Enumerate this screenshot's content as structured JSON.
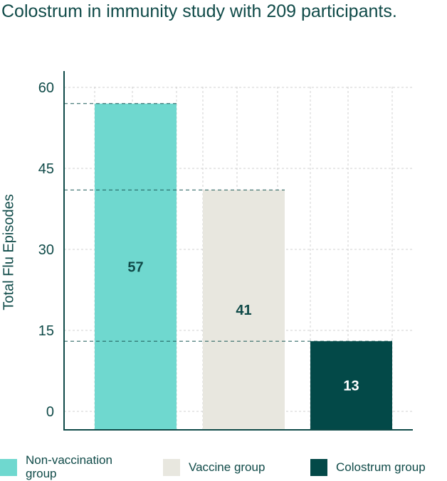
{
  "title": "Colostrum in immunity study with 209 participants.",
  "chart_data": {
    "type": "bar",
    "title": "Colostrum in immunity study with 209 participants.",
    "ylabel": "Total Flu Episodes",
    "ylim": [
      0,
      60
    ],
    "yticks": [
      0,
      15,
      30,
      45,
      60
    ],
    "categories": [
      "Non-vaccination group",
      "Vaccine group",
      "Colostrum group"
    ],
    "values": [
      57,
      41,
      13
    ],
    "data_labels": [
      "57",
      "41",
      "13"
    ],
    "grid": true,
    "legend_position": "bottom",
    "colors": [
      "#6fd8cf",
      "#e8e7df",
      "#034948"
    ],
    "label_colors": [
      "#0f4a48",
      "#0f4a48",
      "#ffffff"
    ]
  },
  "legend": [
    {
      "label": "Non-vaccination group",
      "color": "#6fd8cf"
    },
    {
      "label": "Vaccine group",
      "color": "#e8e7df"
    },
    {
      "label": "Colostrum group",
      "color": "#034948"
    }
  ],
  "colors": {
    "axis": "#0f4a48",
    "grid": "#d0d0d0",
    "text": "#0f4a48"
  }
}
